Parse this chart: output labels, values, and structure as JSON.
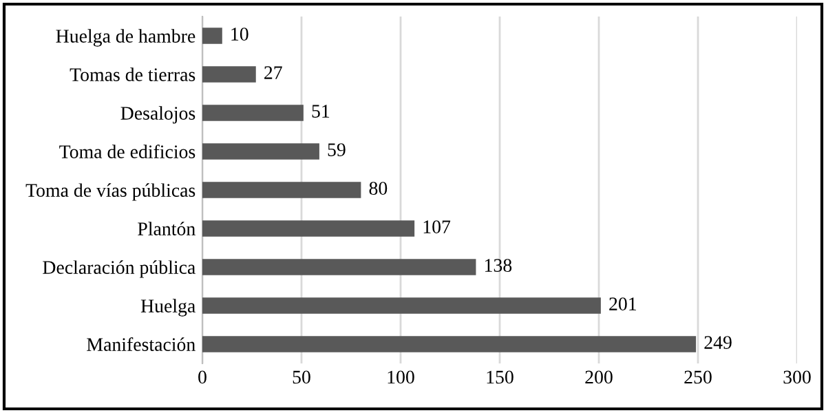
{
  "chart_data": {
    "type": "bar",
    "orientation": "horizontal",
    "categories": [
      "Huelga de hambre",
      "Tomas de tierras",
      "Desalojos",
      "Toma de edificios",
      "Toma de vías públicas",
      "Plantón",
      "Declaración pública",
      "Huelga",
      "Manifestación"
    ],
    "values": [
      10,
      27,
      51,
      59,
      80,
      107,
      138,
      201,
      249
    ],
    "color": "#595959",
    "xlim": [
      0,
      300
    ],
    "xticks": [
      0,
      50,
      100,
      150,
      200,
      250,
      300
    ],
    "grid": "x",
    "data_labels": true
  }
}
